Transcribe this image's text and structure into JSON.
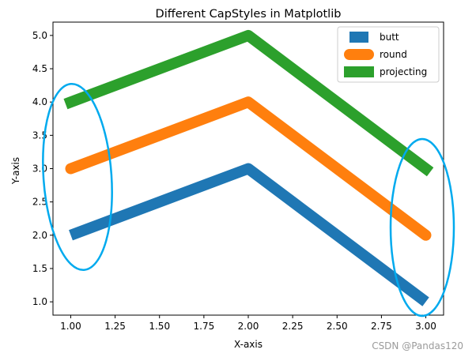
{
  "chart_data": {
    "type": "line",
    "title": "Different CapStyles in Matplotlib",
    "xlabel": "X-axis",
    "ylabel": "Y-axis",
    "xlim": [
      0.9,
      3.1
    ],
    "ylim": [
      0.8,
      5.2
    ],
    "x_ticks": [
      "1.00",
      "1.25",
      "1.50",
      "1.75",
      "2.00",
      "2.25",
      "2.50",
      "2.75",
      "3.00"
    ],
    "y_ticks": [
      "1.0",
      "1.5",
      "2.0",
      "2.5",
      "3.0",
      "3.5",
      "4.0",
      "4.5",
      "5.0"
    ],
    "grid": false,
    "legend_position": "top-right",
    "series": [
      {
        "name": "butt",
        "capstyle": "butt",
        "color": "#1f77b4",
        "x": [
          1,
          2,
          3
        ],
        "y": [
          2,
          3,
          1
        ]
      },
      {
        "name": "round",
        "capstyle": "round",
        "color": "#ff7f0e",
        "x": [
          1,
          2,
          3
        ],
        "y": [
          3,
          4,
          2
        ]
      },
      {
        "name": "projecting",
        "capstyle": "projecting",
        "color": "#2ca02c",
        "x": [
          1,
          2,
          3
        ],
        "y": [
          4,
          5,
          3
        ]
      }
    ],
    "annotations": [
      {
        "shape": "ellipse",
        "color": "#00aaee",
        "center": [
          1.04,
          3.0
        ],
        "note": "left line ends"
      },
      {
        "shape": "ellipse",
        "color": "#00aaee",
        "center": [
          2.98,
          2.12
        ],
        "note": "right line ends"
      }
    ]
  },
  "watermark": "CSDN @Pandas120"
}
